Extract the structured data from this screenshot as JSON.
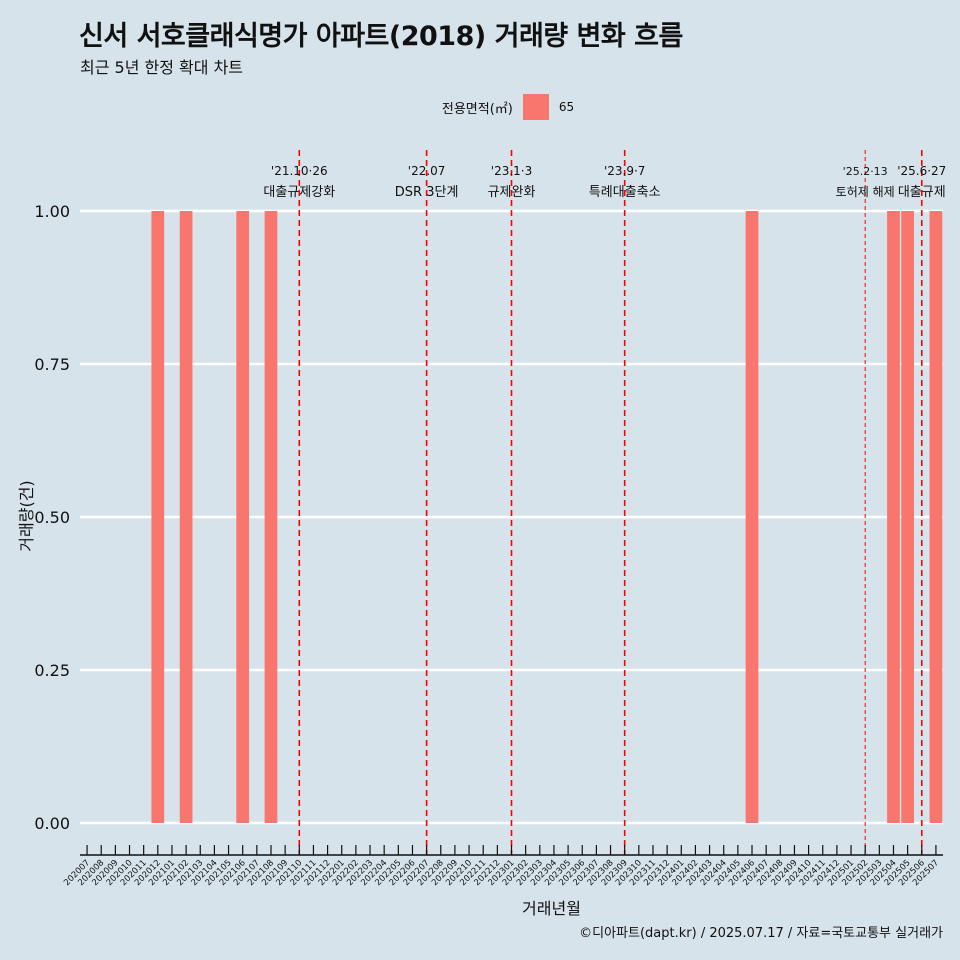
{
  "title": "신서 서호클래식명가 아파트(2018) 거래량 변화 흐름",
  "subtitle": "최근 5년 한정 확대 차트",
  "legend": {
    "title": "전용면적(㎡)",
    "label": "65"
  },
  "caption": "©디아파트(dapt.kr) / 2025.07.17 / 자료=국토교통부 실거래가",
  "colors": {
    "background": "#d6e3ea",
    "bar": "#f8766d",
    "vline": "#ff0000",
    "grid": "#ffffff"
  },
  "chart_data": {
    "type": "bar",
    "xlabel": "거래년월",
    "ylabel": "거래량(건)",
    "ylim": [
      0,
      1
    ],
    "yticks": [
      "0.00",
      "0.25",
      "0.50",
      "0.75",
      "1.00"
    ],
    "categories": [
      "202007",
      "202008",
      "202009",
      "202010",
      "202011",
      "202012",
      "202101",
      "202102",
      "202103",
      "202104",
      "202105",
      "202106",
      "202107",
      "202108",
      "202109",
      "202110",
      "202111",
      "202112",
      "202201",
      "202202",
      "202203",
      "202204",
      "202205",
      "202206",
      "202207",
      "202208",
      "202209",
      "202210",
      "202211",
      "202212",
      "202301",
      "202302",
      "202303",
      "202304",
      "202305",
      "202306",
      "202307",
      "202308",
      "202309",
      "202310",
      "202311",
      "202312",
      "202401",
      "202402",
      "202403",
      "202404",
      "202405",
      "202406",
      "202407",
      "202408",
      "202409",
      "202410",
      "202411",
      "202412",
      "202501",
      "202502",
      "202503",
      "202504",
      "202505",
      "202506",
      "202507"
    ],
    "series": [
      {
        "name": "65",
        "values": [
          0,
          0,
          0,
          0,
          0,
          1,
          0,
          1,
          0,
          0,
          0,
          1,
          0,
          1,
          0,
          0,
          0,
          0,
          0,
          0,
          0,
          0,
          0,
          0,
          0,
          0,
          0,
          0,
          0,
          0,
          0,
          0,
          0,
          0,
          0,
          0,
          0,
          0,
          0,
          0,
          0,
          0,
          0,
          0,
          0,
          0,
          0,
          1,
          0,
          0,
          0,
          0,
          0,
          0,
          0,
          0,
          0,
          1,
          1,
          0,
          1
        ]
      }
    ],
    "annotations": [
      {
        "x": "202110",
        "date": "'21.10·26",
        "label": "대출규제강화",
        "style": "dashed"
      },
      {
        "x": "202207",
        "date": "'22.07",
        "label": "DSR 3단계",
        "style": "dashed"
      },
      {
        "x": "202301",
        "date": "'23.1·3",
        "label": "규제완화",
        "style": "dashed"
      },
      {
        "x": "202309",
        "date": "'23.9·7",
        "label": "특례대출축소",
        "style": "dashed"
      },
      {
        "x": "202502",
        "date": "'25.2·13",
        "label": "토허제 해제",
        "style": "thin-dashed"
      },
      {
        "x": "202506",
        "date": "'25.6·27",
        "label": "대출규제",
        "style": "dashed"
      }
    ]
  }
}
